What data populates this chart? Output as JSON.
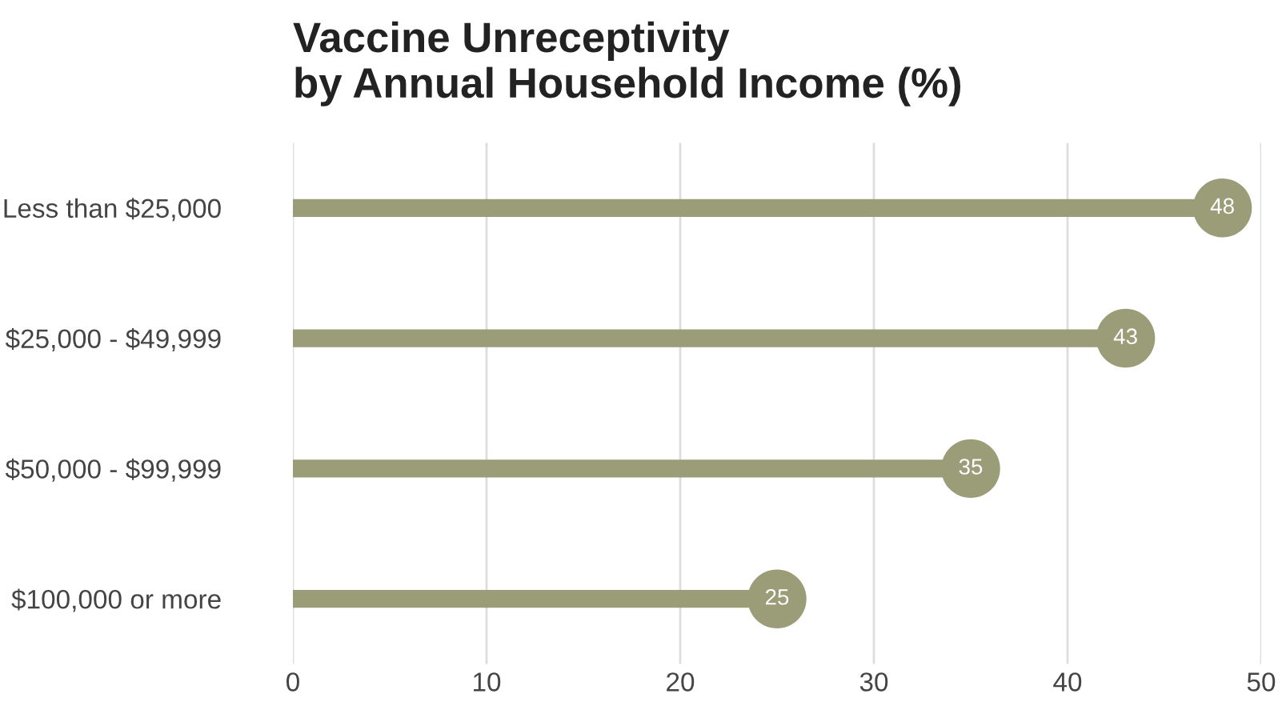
{
  "chart_data": {
    "type": "lollipop",
    "orientation": "horizontal",
    "title": "Vaccine Unreceptivity\nby Annual Household Income (%)",
    "categories": [
      "Less than $25,000",
      "$25,000 - $49,999",
      "$50,000 - $99,999",
      "$100,000 or more"
    ],
    "values": [
      48,
      43,
      35,
      25
    ],
    "color": "#9b9c78",
    "xlim": [
      0,
      50
    ],
    "xticks": [
      0,
      10,
      20,
      30,
      40,
      50
    ],
    "grid": "x",
    "data_labels": true
  }
}
